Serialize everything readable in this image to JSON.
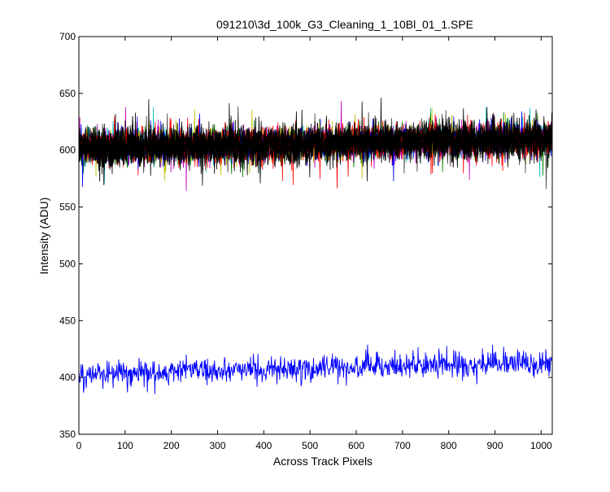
{
  "chart_data": {
    "type": "line",
    "title": "091210\\3d_100k_G3_Cleaning_1_10Bl_01_1.SPE",
    "xlabel": "Across Track Pixels",
    "ylabel": "Intensity (ADU)",
    "xlim": [
      0,
      1024
    ],
    "ylim": [
      350,
      700
    ],
    "x_ticks": [
      0,
      100,
      200,
      300,
      400,
      500,
      600,
      700,
      800,
      900,
      1000
    ],
    "y_ticks": [
      350,
      400,
      450,
      500,
      550,
      600,
      650,
      700
    ],
    "x_points": 1024,
    "grid": false,
    "legend": "none",
    "background_series": {
      "count": 14,
      "mean_start": 602,
      "mean_end": 610,
      "typical_range": [
        585,
        630
      ],
      "observed_min": 571,
      "observed_max": 654,
      "colors": [
        "#ff0000",
        "#00bfbf",
        "#008000",
        "#bf00bf",
        "#bfbf00",
        "#0000ff",
        "#404040",
        "#000000"
      ]
    },
    "series": [
      {
        "color": "#0000ff",
        "mean_start": 403,
        "mean_end": 413,
        "typical_range": [
          393,
          425
        ],
        "observed_min": 384,
        "observed_max": 437
      }
    ]
  }
}
